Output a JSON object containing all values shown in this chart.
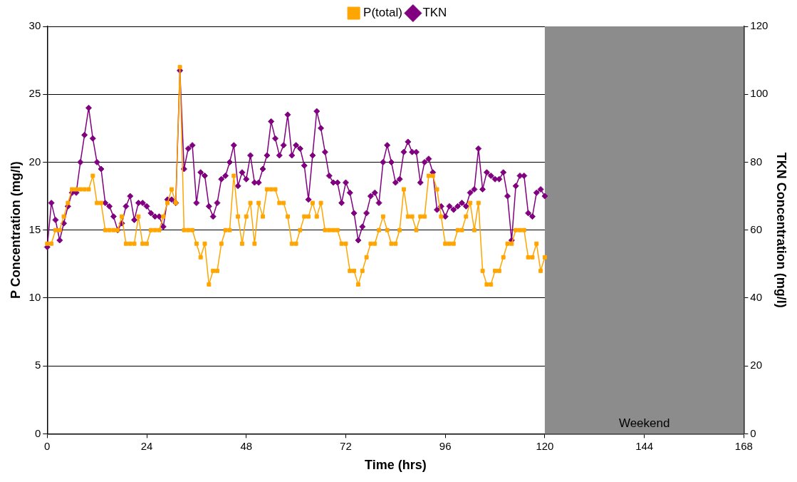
{
  "chart_data": {
    "type": "line",
    "xlabel": "Time (hrs)",
    "ylabel": "P Concentration (mg/l)",
    "y2label": "TKN Concentration (mg/l)",
    "x": [
      0,
      1,
      2,
      3,
      4,
      5,
      6,
      7,
      8,
      9,
      10,
      11,
      12,
      13,
      14,
      15,
      16,
      17,
      18,
      19,
      20,
      21,
      22,
      23,
      24,
      25,
      26,
      27,
      28,
      29,
      30,
      31,
      32,
      33,
      34,
      35,
      36,
      37,
      38,
      39,
      40,
      41,
      42,
      43,
      44,
      45,
      46,
      47,
      48,
      49,
      50,
      51,
      52,
      53,
      54,
      55,
      56,
      57,
      58,
      59,
      60,
      61,
      62,
      63,
      64,
      65,
      66,
      67,
      68,
      69,
      70,
      71,
      72,
      73,
      74,
      75,
      76,
      77,
      78,
      79,
      80,
      81,
      82,
      83,
      84,
      85,
      86,
      87,
      88,
      89,
      90,
      91,
      92,
      93,
      94,
      95,
      96,
      97,
      98,
      99,
      100,
      101,
      102,
      103,
      104,
      105,
      106,
      107,
      108,
      109,
      110,
      111,
      112,
      113,
      114,
      115,
      116,
      117,
      118,
      119,
      120
    ],
    "series": [
      {
        "name": "P(total)",
        "color": "#ffa500",
        "marker": "square",
        "values": [
          14,
          14,
          15,
          15,
          16,
          17,
          18,
          18,
          18,
          18,
          18,
          19,
          17,
          17,
          15,
          15,
          15,
          15,
          16,
          14,
          14,
          14,
          16,
          14,
          14,
          15,
          15,
          15,
          16,
          17,
          18,
          17,
          27,
          15,
          15,
          15,
          14,
          13,
          14,
          11,
          12,
          12,
          14,
          15,
          15,
          19,
          16,
          14,
          16,
          17,
          14,
          17,
          16,
          18,
          18,
          18,
          17,
          17,
          16,
          14,
          14,
          15,
          16,
          16,
          17,
          16,
          17,
          15,
          15,
          15,
          15,
          14,
          14,
          12,
          12,
          11,
          12,
          13,
          14,
          14,
          15,
          16,
          15,
          14,
          14,
          15,
          18,
          16,
          16,
          15,
          16,
          16,
          19,
          19,
          18,
          16,
          14,
          14,
          14,
          15,
          15,
          16,
          17,
          15,
          17,
          12,
          11,
          11,
          12,
          12,
          13,
          14,
          14,
          15,
          15,
          15,
          13,
          13,
          14,
          12,
          13
        ]
      },
      {
        "name": "TKN",
        "color": "#800080",
        "marker": "diamond",
        "axis": "y2",
        "values": [
          55,
          68,
          63,
          57,
          62,
          67,
          71,
          71,
          80,
          88,
          96,
          87,
          80,
          78,
          68,
          67,
          64,
          60,
          62,
          67,
          70,
          63,
          68,
          68,
          67,
          65,
          64,
          64,
          61,
          69,
          69,
          68,
          107,
          78,
          84,
          85,
          68,
          77,
          76,
          67,
          64,
          68,
          75,
          76,
          80,
          85,
          73,
          77,
          75,
          82,
          74,
          74,
          78,
          82,
          92,
          87,
          82,
          85,
          94,
          82,
          85,
          84,
          79,
          69,
          82,
          95,
          90,
          83,
          76,
          74,
          74,
          68,
          74,
          71,
          65,
          57,
          61,
          65,
          70,
          71,
          68,
          80,
          85,
          80,
          74,
          75,
          83,
          86,
          83,
          83,
          74,
          80,
          81,
          77,
          66,
          67,
          64,
          67,
          66,
          67,
          68,
          67,
          71,
          72,
          84,
          72,
          77,
          76,
          75,
          75,
          77,
          70,
          57,
          73,
          76,
          76,
          65,
          64,
          71,
          72,
          70
        ]
      }
    ],
    "xlim": [
      0,
      168
    ],
    "xticks": [
      0,
      24,
      48,
      72,
      96,
      120,
      144,
      168
    ],
    "ylim": [
      0,
      30
    ],
    "yticks": [
      0,
      5,
      10,
      15,
      20,
      25,
      30
    ],
    "y2lim": [
      0,
      120
    ],
    "y2ticks": [
      0,
      20,
      40,
      60,
      80,
      100,
      120
    ],
    "bands": [
      {
        "axis": "x",
        "from": 120,
        "to": 168,
        "label": "Weekend",
        "color": "#8c8c8c"
      }
    ],
    "grid": "y",
    "legend": "top",
    "line_style": "solid"
  }
}
